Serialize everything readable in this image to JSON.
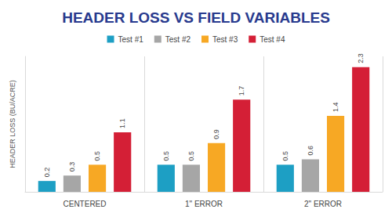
{
  "chart_data": {
    "type": "bar",
    "title": "HEADER LOSS VS FIELD VARIABLES",
    "y_label": "HEADER LOSS (BU/ACRE)",
    "categories": [
      "CENTERED",
      "1\" ERROR",
      "2\" ERROR"
    ],
    "series": [
      {
        "name": "Test #1",
        "color": "#1d9fc4",
        "values": [
          0.2,
          0.5,
          0.5
        ]
      },
      {
        "name": "Test #2",
        "color": "#a6a6a6",
        "values": [
          0.3,
          0.5,
          0.6
        ]
      },
      {
        "name": "Test #3",
        "color": "#f7a824",
        "values": [
          0.5,
          0.9,
          1.4
        ]
      },
      {
        "name": "Test #4",
        "color": "#d41f36",
        "values": [
          1.1,
          1.7,
          2.3
        ]
      }
    ],
    "ylim": [
      0,
      2.5
    ],
    "yticks": [
      0,
      0.5,
      1,
      1.5,
      2,
      2.5
    ],
    "grid": false,
    "legend": "top",
    "data_labels": true,
    "tick_labels": "x"
  }
}
